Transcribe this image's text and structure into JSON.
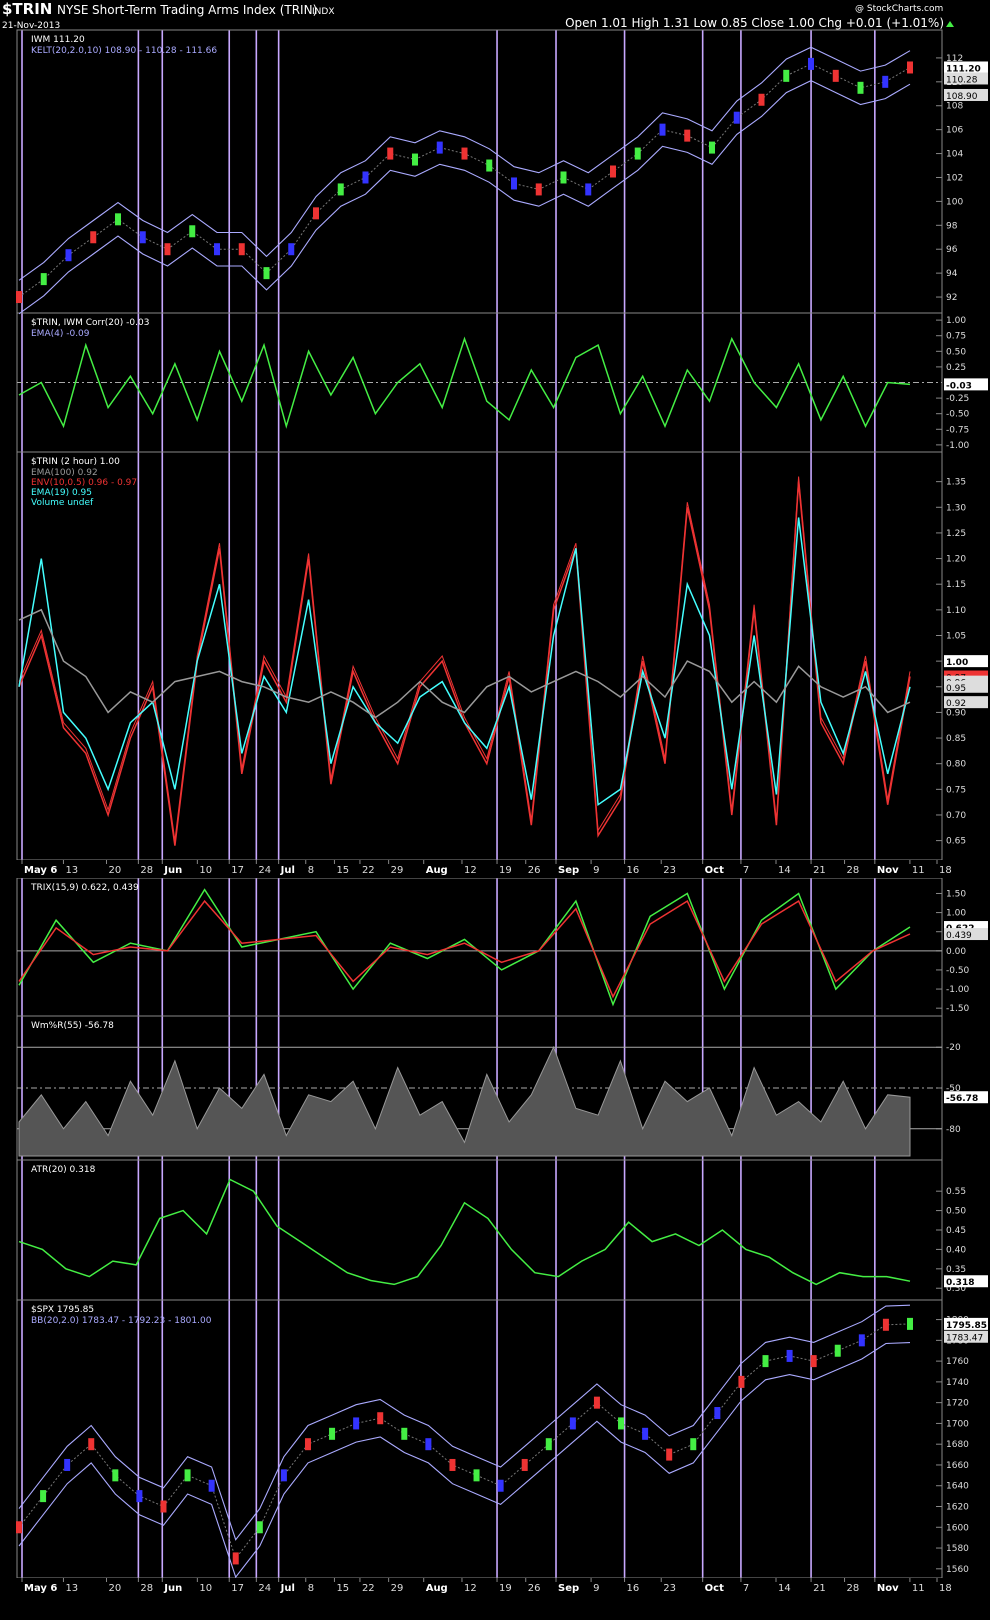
{
  "header": {
    "symbol": "$TRIN",
    "exchange": "NYSE",
    "name": "Short-Term Trading Arms Index (TRIN)",
    "type": "INDX",
    "date": "21-Nov-2013",
    "ohlc": "Open 1.01  High 1.31  Low 0.85  Close 1.00  Chg +0.01 (+1.01%)",
    "watermark": "@ StockCharts.com"
  },
  "x_axis": {
    "dates": [
      "May 6",
      "13",
      "20",
      "28",
      "Jun",
      "10",
      "17",
      "24",
      "Jul",
      "8",
      "15",
      "22",
      "29",
      "Aug",
      "12",
      "19",
      "26",
      "Sep",
      "9",
      "16",
      "23",
      "Oct",
      "7",
      "14",
      "21",
      "28",
      "Nov",
      "11",
      "18"
    ],
    "bold": [
      "May 6",
      "Jun",
      "Jul",
      "Aug",
      "Sep",
      "Oct",
      "Nov"
    ],
    "vertical_markers_at": [
      "May 6",
      "28",
      "Jun",
      "17",
      "24",
      "Jul",
      "19",
      "Sep",
      "16",
      "Oct",
      "7",
      "21",
      "Nov"
    ]
  },
  "colors": {
    "green": "#44ee44",
    "red": "#ee3333",
    "blue": "#3333ff",
    "lavender": "#aaaaff",
    "marker": "#c8a8ff",
    "cyan": "#44ffff",
    "gray": "#999999",
    "white": "#ffffff"
  },
  "chart_data": [
    {
      "id": "iwm",
      "type": "line",
      "title": "IWM 111.20",
      "legend": [
        "KELT(20,2.0,10) 108.90 - 110.28 - 111.66"
      ],
      "ylim": [
        91,
        114
      ],
      "yticks": [
        92,
        94,
        96,
        98,
        100,
        102,
        104,
        106,
        108,
        110,
        112
      ],
      "right_tags": [
        {
          "value": 111.2,
          "label": "111.20"
        },
        {
          "value": 110.28,
          "label": "110.28"
        },
        {
          "value": 108.9,
          "label": "108.90"
        }
      ],
      "series": [
        {
          "name": "IWM",
          "values": [
            92,
            93.5,
            95.5,
            97,
            98.5,
            97,
            96,
            97.5,
            96,
            96,
            94,
            96,
            99,
            101,
            102,
            104,
            103.5,
            104.5,
            104,
            103,
            101.5,
            101,
            102,
            101,
            102.5,
            104,
            106,
            105.5,
            104.5,
            107,
            108.5,
            110.5,
            111.5,
            110.5,
            109.5,
            110,
            111.2
          ]
        }
      ]
    },
    {
      "id": "corr",
      "type": "line",
      "title": "$TRIN, IWM Corr(20) -0.03",
      "legend": [
        "EMA(4) -0.09"
      ],
      "ylim": [
        -1.05,
        1.05
      ],
      "yticks": [
        1.0,
        0.75,
        0.5,
        0.25,
        -0.25,
        -0.5,
        -0.75,
        -1.0
      ],
      "right_tags": [
        {
          "value": -0.03,
          "label": "-0.03"
        }
      ],
      "series": [
        {
          "name": "Corr(20)",
          "values": [
            -0.2,
            0.0,
            -0.7,
            0.6,
            -0.4,
            0.1,
            -0.5,
            0.3,
            -0.6,
            0.5,
            -0.3,
            0.6,
            -0.7,
            0.5,
            -0.2,
            0.4,
            -0.5,
            0.0,
            0.3,
            -0.4,
            0.7,
            -0.3,
            -0.6,
            0.2,
            -0.4,
            0.4,
            0.6,
            -0.5,
            0.1,
            -0.7,
            0.2,
            -0.3,
            0.7,
            0.0,
            -0.4,
            0.3,
            -0.6,
            0.1,
            -0.7,
            0.0,
            -0.03
          ]
        }
      ]
    },
    {
      "id": "trin",
      "type": "line",
      "title": "$TRIN (2 hour) 1.00",
      "legend": [
        "EMA(100) 0.92",
        "ENV(10,0.5) 0.96 - 0.97",
        "EMA(19) 0.95",
        "Volume undef"
      ],
      "ylim": [
        0.62,
        1.4
      ],
      "yticks": [
        0.65,
        0.7,
        0.75,
        0.8,
        0.85,
        0.9,
        0.95,
        1.0,
        1.05,
        1.1,
        1.15,
        1.2,
        1.25,
        1.3,
        1.35
      ],
      "right_tags": [
        {
          "value": 1.0,
          "label": "1.00"
        },
        {
          "value": 0.97,
          "label": "0.97"
        },
        {
          "value": 0.96,
          "label": "0.96"
        },
        {
          "value": 0.95,
          "label": "0.95"
        },
        {
          "value": 0.92,
          "label": "0.92"
        }
      ],
      "series": [
        {
          "name": "ENV(10,0.5)",
          "values": [
            0.95,
            1.05,
            0.87,
            0.82,
            0.7,
            0.85,
            0.95,
            0.64,
            1.0,
            1.22,
            0.78,
            1.0,
            0.92,
            1.2,
            0.76,
            0.98,
            0.88,
            0.8,
            0.95,
            1.0,
            0.88,
            0.8,
            0.97,
            0.68,
            1.1,
            1.22,
            0.66,
            0.73,
            1.0,
            0.8,
            1.3,
            1.1,
            0.7,
            1.1,
            0.68,
            1.35,
            0.88,
            0.8,
            1.0,
            0.72,
            0.97
          ]
        },
        {
          "name": "EMA(19)",
          "values": [
            0.95,
            1.2,
            0.9,
            0.85,
            0.75,
            0.88,
            0.92,
            0.75,
            1.0,
            1.15,
            0.82,
            0.97,
            0.9,
            1.12,
            0.8,
            0.95,
            0.88,
            0.84,
            0.93,
            0.96,
            0.88,
            0.83,
            0.95,
            0.73,
            1.05,
            1.22,
            0.72,
            0.75,
            0.98,
            0.85,
            1.15,
            1.05,
            0.75,
            1.05,
            0.74,
            1.28,
            0.92,
            0.82,
            0.98,
            0.78,
            0.95
          ]
        },
        {
          "name": "EMA(100)",
          "values": [
            1.08,
            1.1,
            1.0,
            0.97,
            0.9,
            0.94,
            0.92,
            0.96,
            0.97,
            0.98,
            0.96,
            0.95,
            0.93,
            0.92,
            0.94,
            0.92,
            0.89,
            0.92,
            0.96,
            0.92,
            0.9,
            0.95,
            0.97,
            0.94,
            0.96,
            0.98,
            0.96,
            0.93,
            0.97,
            0.93,
            1.0,
            0.98,
            0.92,
            0.96,
            0.92,
            0.99,
            0.95,
            0.93,
            0.95,
            0.9,
            0.92
          ]
        }
      ]
    },
    {
      "id": "trix",
      "type": "line",
      "title": "TRIX(15,9) 0.622, 0.439",
      "legend": [],
      "ylim": [
        -1.6,
        1.8
      ],
      "yticks": [
        1.5,
        1.0,
        0.5,
        0.0,
        -0.5,
        -1.0,
        -1.5
      ],
      "right_tags": [
        {
          "value": 0.622,
          "label": "0.622"
        },
        {
          "value": 0.439,
          "label": "0.439"
        }
      ],
      "series": [
        {
          "name": "TRIX",
          "values": [
            -0.9,
            0.8,
            -0.3,
            0.2,
            0.0,
            1.6,
            0.1,
            0.3,
            0.5,
            -1.0,
            0.2,
            -0.2,
            0.3,
            -0.5,
            0.0,
            1.3,
            -1.4,
            0.9,
            1.5,
            -1.0,
            0.8,
            1.5,
            -1.0,
            0.0,
            0.622
          ]
        },
        {
          "name": "Signal",
          "values": [
            -0.8,
            0.6,
            -0.1,
            0.1,
            0.0,
            1.3,
            0.2,
            0.3,
            0.4,
            -0.8,
            0.1,
            -0.1,
            0.2,
            -0.3,
            0.0,
            1.1,
            -1.2,
            0.7,
            1.3,
            -0.8,
            0.7,
            1.3,
            -0.8,
            0.0,
            0.439
          ]
        }
      ]
    },
    {
      "id": "willr",
      "type": "line",
      "title": "Wm%R(55) -56.78",
      "legend": [],
      "ylim": [
        -100,
        0
      ],
      "yticks": [
        -20,
        -50,
        -80
      ],
      "right_tags": [
        {
          "value": -56.78,
          "label": "-56.78"
        }
      ],
      "series": [
        {
          "name": "Wm%R",
          "values": [
            -75,
            -55,
            -80,
            -60,
            -85,
            -45,
            -70,
            -30,
            -80,
            -50,
            -65,
            -40,
            -85,
            -55,
            -60,
            -45,
            -80,
            -35,
            -70,
            -60,
            -90,
            -40,
            -75,
            -55,
            -20,
            -65,
            -70,
            -30,
            -80,
            -45,
            -60,
            -50,
            -85,
            -35,
            -70,
            -60,
            -75,
            -45,
            -80,
            -55,
            -56.78
          ]
        }
      ]
    },
    {
      "id": "atr",
      "type": "line",
      "title": "ATR(20) 0.318",
      "legend": [],
      "ylim": [
        0.28,
        0.62
      ],
      "yticks": [
        0.55,
        0.5,
        0.45,
        0.4,
        0.35,
        0.3
      ],
      "right_tags": [
        {
          "value": 0.318,
          "label": "0.318"
        }
      ],
      "series": [
        {
          "name": "ATR(20)",
          "values": [
            0.42,
            0.4,
            0.35,
            0.33,
            0.37,
            0.36,
            0.48,
            0.5,
            0.44,
            0.58,
            0.55,
            0.46,
            0.42,
            0.38,
            0.34,
            0.32,
            0.31,
            0.33,
            0.41,
            0.52,
            0.48,
            0.4,
            0.34,
            0.33,
            0.37,
            0.4,
            0.47,
            0.42,
            0.44,
            0.41,
            0.45,
            0.4,
            0.38,
            0.34,
            0.31,
            0.34,
            0.33,
            0.33,
            0.318
          ]
        }
      ]
    },
    {
      "id": "spx",
      "type": "line",
      "title": "$SPX 1795.85",
      "legend": [
        "BB(20,2.0) 1783.47 - 1792.23 - 1801.00"
      ],
      "ylim": [
        1555,
        1815
      ],
      "yticks": [
        1560,
        1580,
        1600,
        1620,
        1640,
        1660,
        1680,
        1700,
        1720,
        1740,
        1760,
        1780,
        1800
      ],
      "right_tags": [
        {
          "value": 1795.85,
          "label": "1795.85"
        },
        {
          "value": 1783.47,
          "label": "1783.47"
        }
      ],
      "series": [
        {
          "name": "SPX",
          "values": [
            1600,
            1630,
            1660,
            1680,
            1650,
            1630,
            1620,
            1650,
            1640,
            1570,
            1600,
            1650,
            1680,
            1690,
            1700,
            1705,
            1690,
            1680,
            1660,
            1650,
            1640,
            1660,
            1680,
            1700,
            1720,
            1700,
            1690,
            1670,
            1680,
            1710,
            1740,
            1760,
            1765,
            1760,
            1770,
            1780,
            1795,
            1795.85
          ]
        }
      ]
    }
  ]
}
